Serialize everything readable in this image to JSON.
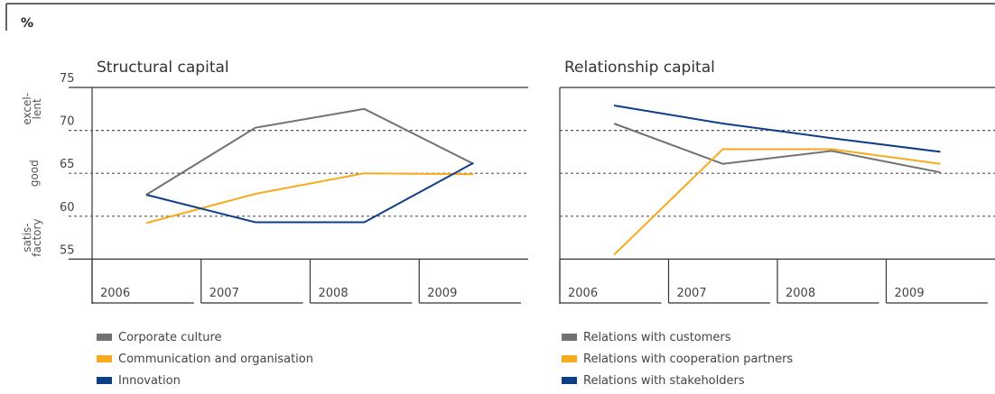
{
  "unit_label": "%",
  "y_ticks": [
    "75",
    "70",
    "65",
    "60",
    "55"
  ],
  "y_bands": [
    {
      "label": "excel-\nlent",
      "from": 70,
      "to": 75
    },
    {
      "label": "good",
      "from": 60,
      "to": 70
    },
    {
      "label": "satis-\nfactory",
      "from": 55,
      "to": 60
    }
  ],
  "colors": {
    "gray": "#727272",
    "orange": "#F6AA1C",
    "blue": "#0D3F88",
    "axis": "#333333"
  },
  "chart_data": [
    {
      "type": "line",
      "title": "Structural capital",
      "categories": [
        "2006",
        "2007",
        "2008",
        "2009"
      ],
      "ylim": [
        50,
        75
      ],
      "grid_dotted_at": [
        60,
        65,
        70
      ],
      "series": [
        {
          "name": "Corporate culture",
          "color": "#727272",
          "values": [
            62.5,
            70.3,
            72.5,
            66.1
          ]
        },
        {
          "name": "Communication and organisation",
          "color": "#F6AA1C",
          "values": [
            59.2,
            62.6,
            65.0,
            64.9
          ]
        },
        {
          "name": "Innovation",
          "color": "#0D3F88",
          "values": [
            62.5,
            59.3,
            59.3,
            66.2
          ]
        }
      ]
    },
    {
      "type": "line",
      "title": "Relationship capital",
      "categories": [
        "2006",
        "2007",
        "2008",
        "2009"
      ],
      "ylim": [
        50,
        75
      ],
      "grid_dotted_at": [
        60,
        65,
        70
      ],
      "series": [
        {
          "name": "Relations with customers",
          "color": "#727272",
          "values": [
            70.8,
            66.1,
            67.6,
            65.1
          ]
        },
        {
          "name": "Relations with cooperation partners",
          "color": "#F6AA1C",
          "values": [
            55.5,
            67.8,
            67.8,
            66.1
          ]
        },
        {
          "name": "Relations with stakeholders",
          "color": "#0D3F88",
          "values": [
            72.9,
            70.8,
            69.1,
            67.5
          ]
        }
      ]
    }
  ]
}
